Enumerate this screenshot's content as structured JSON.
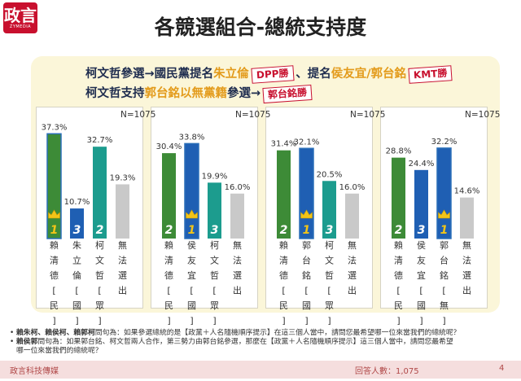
{
  "header": {
    "logo_main": "政言",
    "logo_sub": "ZYMEDIA",
    "title": "各競選組合-總統支持度"
  },
  "subheads": {
    "line1": {
      "a": "柯文哲參選→國民黨提名",
      "b": "朱立倫",
      "tag1": "DPP勝",
      "c": "、提名",
      "d": "侯友宜/郭台銘",
      "tag2": "KMT勝"
    },
    "line2": {
      "a": "柯文哲支持",
      "b": "郭台銘以無黨籍",
      "c": "參選→",
      "tag": "郭台銘勝"
    }
  },
  "chart_data": [
    {
      "type": "bar",
      "n_label": "N=1075",
      "categories": [
        "賴清德[民]",
        "朱立倫[國]",
        "柯文哲[眾]",
        "無法選出"
      ],
      "values": [
        37.3,
        10.7,
        32.7,
        19.3
      ],
      "value_labels": [
        "37.3%",
        "10.7%",
        "32.7%",
        "19.3%"
      ],
      "ranks": [
        "1",
        "3",
        "2",
        ""
      ],
      "ylim": [
        0,
        40
      ]
    },
    {
      "type": "bar",
      "n_label": "N=1075",
      "categories": [
        "賴清德[民]",
        "侯友宜[國]",
        "柯文哲[眾]",
        "無法選出"
      ],
      "values": [
        30.4,
        33.8,
        19.9,
        16.0
      ],
      "value_labels": [
        "30.4%",
        "33.8%",
        "19.9%",
        "16.0%"
      ],
      "ranks": [
        "2",
        "1",
        "3",
        ""
      ],
      "ylim": [
        0,
        40
      ]
    },
    {
      "type": "bar",
      "n_label": "N=1075",
      "categories": [
        "賴清德[民]",
        "郭台銘[國]",
        "柯文哲[眾]",
        "無法選出"
      ],
      "values": [
        31.4,
        32.1,
        20.5,
        16.0
      ],
      "value_labels": [
        "31.4%",
        "32.1%",
        "20.5%",
        "16.0%"
      ],
      "ranks": [
        "2",
        "1",
        "3",
        ""
      ],
      "ylim": [
        0,
        40
      ]
    },
    {
      "type": "bar",
      "n_label": "N=1075",
      "categories": [
        "賴清德[民]",
        "侯友宜[國]",
        "郭台銘[無]",
        "無法選出"
      ],
      "values": [
        28.8,
        24.4,
        32.2,
        14.6
      ],
      "value_labels": [
        "28.8%",
        "24.4%",
        "32.2%",
        "14.6%"
      ],
      "ranks": [
        "2",
        "3",
        "1",
        ""
      ],
      "ylim": [
        0,
        40
      ]
    }
  ],
  "colors": {
    "green": "#3d8b37",
    "blue": "#1f5fb3",
    "teal": "#1c9c8e",
    "gray": "#c9c9c9",
    "crown": "#f2c418"
  },
  "footnotes": {
    "q1_bold": "賴朱柯、賴侯柯、賴郭柯",
    "q1_text": "問句為：如果參選總統的是【政黨＋人名隨機順序提示】在這三個人當中，請問您最希望哪一位來當我們的總統呢？",
    "q2_bold": "賴侯郭",
    "q2_text": "問句為：如果郭台銘、柯文哲兩人合作，第三勢力由郭台銘參選，那麼在【政黨＋人名隨機順序提示】這三個人當中，請問您最希望",
    "q2_text2": "哪一位來當我們的總統呢？"
  },
  "footer": {
    "left": "政言科技傳媒",
    "right": "回答人數：1,075",
    "page": "4"
  }
}
